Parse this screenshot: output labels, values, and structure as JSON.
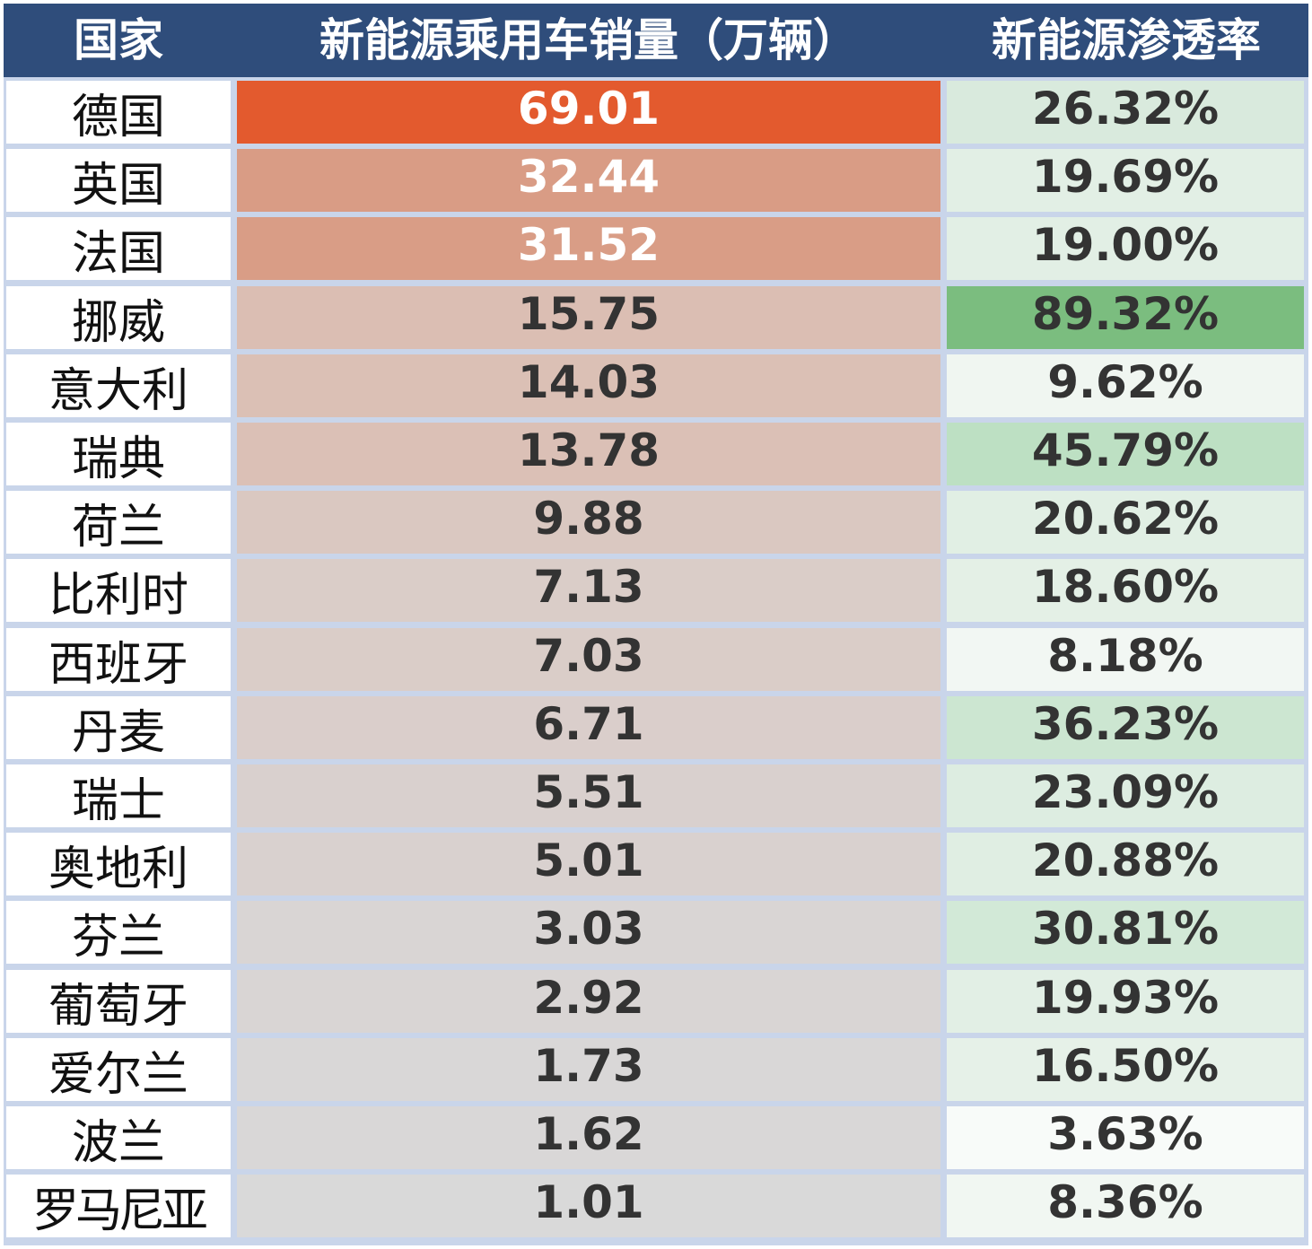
{
  "chart_data": {
    "type": "table",
    "columns": [
      "国家",
      "新能源乘用车销量（万辆）",
      "新能源渗透率"
    ],
    "rows": [
      {
        "country": "德国",
        "sales": "69.01",
        "rate": "26.32%",
        "sales_bg": "#e35a2e",
        "rate_bg": "#d9eadd"
      },
      {
        "country": "英国",
        "sales": "32.44",
        "rate": "19.69%",
        "sales_bg": "#d99c85",
        "rate_bg": "#e2efe5"
      },
      {
        "country": "法国",
        "sales": "31.52",
        "rate": "19.00%",
        "sales_bg": "#d99d86",
        "rate_bg": "#e2efe5"
      },
      {
        "country": "挪威",
        "sales": "15.75",
        "rate": "89.32%",
        "sales_bg": "#dbbeb3",
        "rate_bg": "#7bbd7f"
      },
      {
        "country": "意大利",
        "sales": "14.03",
        "rate": "9.62%",
        "sales_bg": "#dbc0b5",
        "rate_bg": "#f0f6f1"
      },
      {
        "country": "瑞典",
        "sales": "13.78",
        "rate": "45.79%",
        "sales_bg": "#dbc0b6",
        "rate_bg": "#bde0c3"
      },
      {
        "country": "荷兰",
        "sales": "9.88",
        "rate": "20.62%",
        "sales_bg": "#dac8c1",
        "rate_bg": "#e1efe4"
      },
      {
        "country": "比利时",
        "sales": "7.13",
        "rate": "18.60%",
        "sales_bg": "#dacdc8",
        "rate_bg": "#e4f0e6"
      },
      {
        "country": "西班牙",
        "sales": "7.03",
        "rate": "8.18%",
        "sales_bg": "#dacdc8",
        "rate_bg": "#f2f7f3"
      },
      {
        "country": "丹麦",
        "sales": "6.71",
        "rate": "36.23%",
        "sales_bg": "#dacecb",
        "rate_bg": "#cce6d1"
      },
      {
        "country": "瑞士",
        "sales": "5.51",
        "rate": "23.09%",
        "sales_bg": "#d9d0ce",
        "rate_bg": "#ddede1"
      },
      {
        "country": "奥地利",
        "sales": "5.01",
        "rate": "20.88%",
        "sales_bg": "#d9d1cf",
        "rate_bg": "#e0eee3"
      },
      {
        "country": "芬兰",
        "sales": "3.03",
        "rate": "30.81%",
        "sales_bg": "#d9d5d4",
        "rate_bg": "#d2e9d7"
      },
      {
        "country": "葡萄牙",
        "sales": "2.92",
        "rate": "19.93%",
        "sales_bg": "#d9d5d4",
        "rate_bg": "#e2efe5"
      },
      {
        "country": "爱尔兰",
        "sales": "1.73",
        "rate": "16.50%",
        "sales_bg": "#d9d7d7",
        "rate_bg": "#e6f1e8"
      },
      {
        "country": "波兰",
        "sales": "1.62",
        "rate": "3.63%",
        "sales_bg": "#d9d7d7",
        "rate_bg": "#f8fbf9"
      },
      {
        "country": "罗马尼亚",
        "sales": "1.01",
        "rate": "8.36%",
        "sales_bg": "#d9d9d9",
        "rate_bg": "#f1f7f2"
      }
    ]
  }
}
